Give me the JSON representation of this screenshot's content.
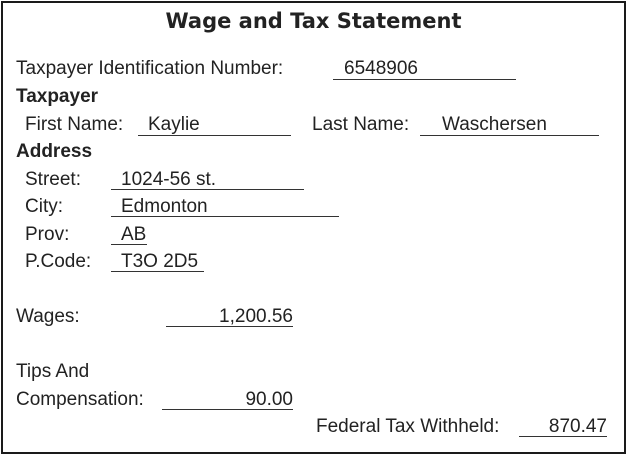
{
  "form": {
    "title": "Wage and Tax Statement",
    "tin_label": "Taxpayer Identification Number:",
    "tin_value": "6548906",
    "taxpayer_heading": "Taxpayer",
    "first_name_label": "First Name:",
    "first_name_value": "Kaylie",
    "last_name_label": "Last Name:",
    "last_name_value": "Waschersen",
    "address_heading": "Address",
    "street_label": "Street:",
    "street_value": "1024-56 st.",
    "city_label": "City:",
    "city_value": "Edmonton",
    "prov_label": "Prov:",
    "prov_value": "AB",
    "pcode_label": "P.Code:",
    "pcode_value": "T3O 2D5",
    "wages_label": "Wages:",
    "wages_value": "1,200.56",
    "tips_label_line1": "Tips And",
    "tips_label_line2": "Compensation:",
    "tips_value": "90.00",
    "federal_tax_label": "Federal Tax Withheld:",
    "federal_tax_value": "870.47"
  }
}
